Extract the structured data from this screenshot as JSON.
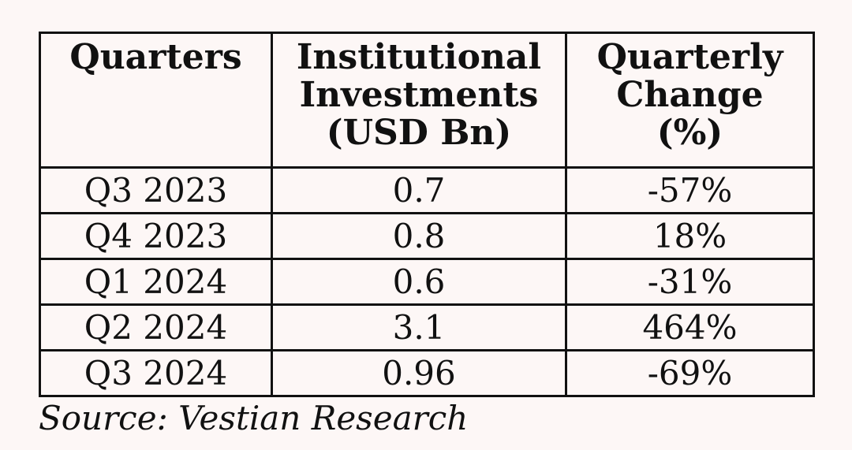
{
  "chart_data": {
    "type": "table",
    "columns": [
      [
        "Quarters"
      ],
      [
        "Institutional",
        "Investments",
        "(USD Bn)"
      ],
      [
        "Quarterly",
        "Change",
        "(%)"
      ]
    ],
    "rows": [
      [
        "Q3 2023",
        "0.7",
        "-57%"
      ],
      [
        "Q4 2023",
        "0.8",
        "18%"
      ],
      [
        "Q1 2024",
        "0.6",
        "-31%"
      ],
      [
        "Q2 2024",
        "3.1",
        "464%"
      ],
      [
        "Q3 2024",
        "0.96",
        "-69%"
      ]
    ],
    "source": "Source: Vestian Research"
  }
}
